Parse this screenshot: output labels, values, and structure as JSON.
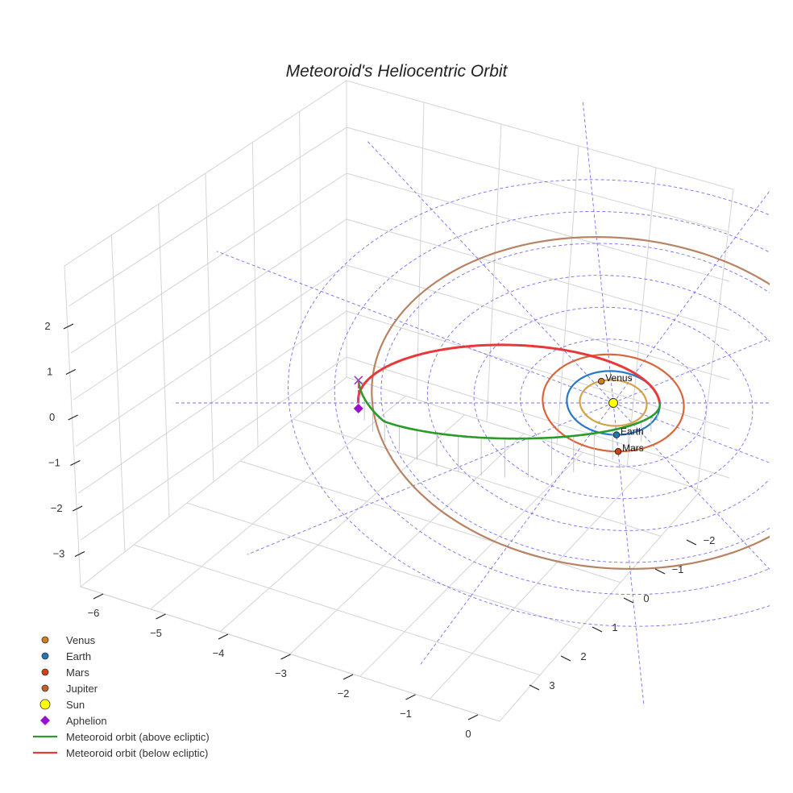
{
  "chart_data": {
    "type": "line",
    "title": "Meteoroid's Heliocentric Orbit",
    "xlabel": "",
    "ylabel": "",
    "zlabel": "",
    "x_ticks": [
      "−6",
      "−5",
      "−4",
      "−3",
      "−2",
      "−1",
      "0"
    ],
    "y_ticks": [
      "−2",
      "−1",
      "0",
      "1",
      "2",
      "3"
    ],
    "z_ticks": [
      "2",
      "1",
      "0",
      "−1",
      "−2",
      "−3"
    ],
    "bodies": [
      {
        "name": "Sun",
        "position": [
          0,
          0,
          0
        ],
        "color": "#ffff00"
      },
      {
        "name": "Venus",
        "position": [
          -0.21,
          0.68,
          0.0
        ],
        "color": "#d07f1c",
        "orbit_radius_au": 0.72,
        "orbit_color": "#d4a247"
      },
      {
        "name": "Earth",
        "position": [
          0.0,
          -1.0,
          0.0
        ],
        "color": "#1f77b4",
        "orbit_radius_au": 1.0,
        "orbit_color": "#2878c8"
      },
      {
        "name": "Mars",
        "position": [
          0.0,
          -1.52,
          0.0
        ],
        "color": "#d6400f",
        "orbit_radius_au": 1.52,
        "orbit_color": "#d9663a"
      },
      {
        "name": "Jupiter",
        "orbit_radius_au": 5.2,
        "color": "#c0622a",
        "orbit_color": "#b88363"
      }
    ],
    "meteoroid": {
      "perihelion_au": 1.0,
      "aphelion_au": 5.5,
      "aphelion_position": [
        -5.5,
        0.0,
        1.0
      ],
      "max_height_au": 1.7,
      "above_color": "#2a9a2a",
      "below_color": "#e63a3a"
    },
    "legend": {
      "position": "bottom-left",
      "entries": [
        {
          "label": "Venus",
          "kind": "dot",
          "color": "#d07f1c"
        },
        {
          "label": "Earth",
          "kind": "dot",
          "color": "#1f77b4"
        },
        {
          "label": "Mars",
          "kind": "dot",
          "color": "#d6400f"
        },
        {
          "label": "Jupiter",
          "kind": "dot",
          "color": "#c0622a"
        },
        {
          "label": "Sun",
          "kind": "bigdot",
          "color": "#ffff00"
        },
        {
          "label": "Aphelion",
          "kind": "diamond",
          "color": "#9a10d0"
        },
        {
          "label": "Meteoroid orbit (above ecliptic)",
          "kind": "line",
          "color": "#2a9a2a"
        },
        {
          "label": "Meteoroid orbit (below ecliptic)",
          "kind": "line",
          "color": "#e63a3a"
        }
      ]
    },
    "ecliptic_grid_color": "#5b5bf0",
    "grid": true
  }
}
